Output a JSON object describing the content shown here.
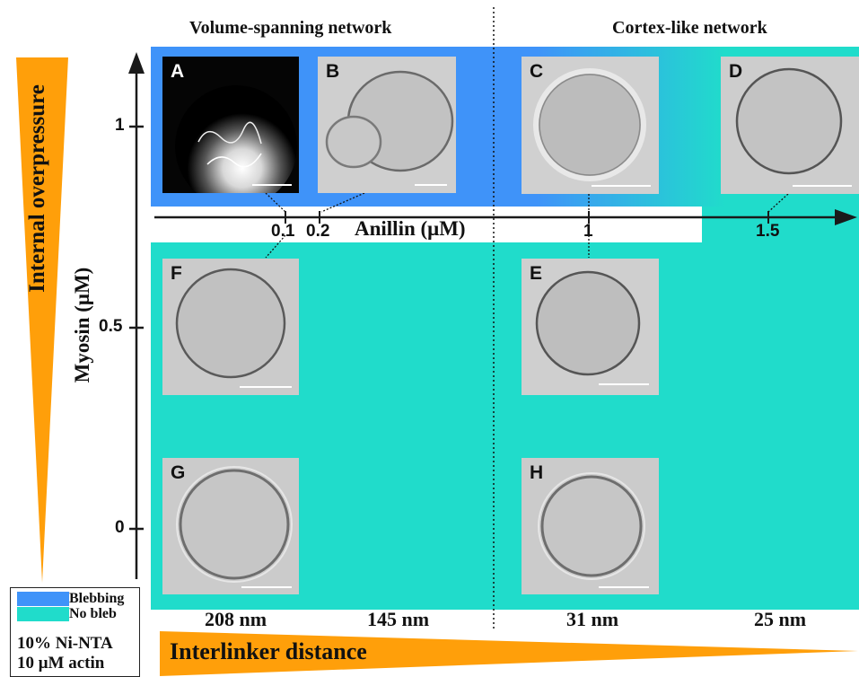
{
  "header": {
    "left": "Volume-spanning network",
    "right": "Cortex-like network"
  },
  "colors": {
    "blebbing": "#3f93f9",
    "no_bleb": "#20dccb",
    "arrow_orange": "#ff9f0a",
    "axis": "#1a1a1a"
  },
  "y_axis": {
    "label": "Myosin (μM)",
    "ticks": [
      "1",
      "0.5",
      "0"
    ]
  },
  "x_axis": {
    "label": "Anillin (μM)",
    "ticks": [
      "0.1",
      "0.2",
      "1",
      "1.5"
    ]
  },
  "left_arrow_label": "Internal overpressure",
  "bottom_arrow_label": "Interlinker distance",
  "distances": [
    "208 nm",
    "145 nm",
    "31 nm",
    "25 nm"
  ],
  "panels": {
    "A": "A",
    "B": "B",
    "C": "C",
    "D": "D",
    "E": "E",
    "F": "F",
    "G": "G",
    "H": "H"
  },
  "legend": {
    "blebbing": "Blebbing",
    "no_bleb": "No bleb",
    "cond1": "10% Ni-NTA",
    "cond2": "10 μM actin"
  }
}
